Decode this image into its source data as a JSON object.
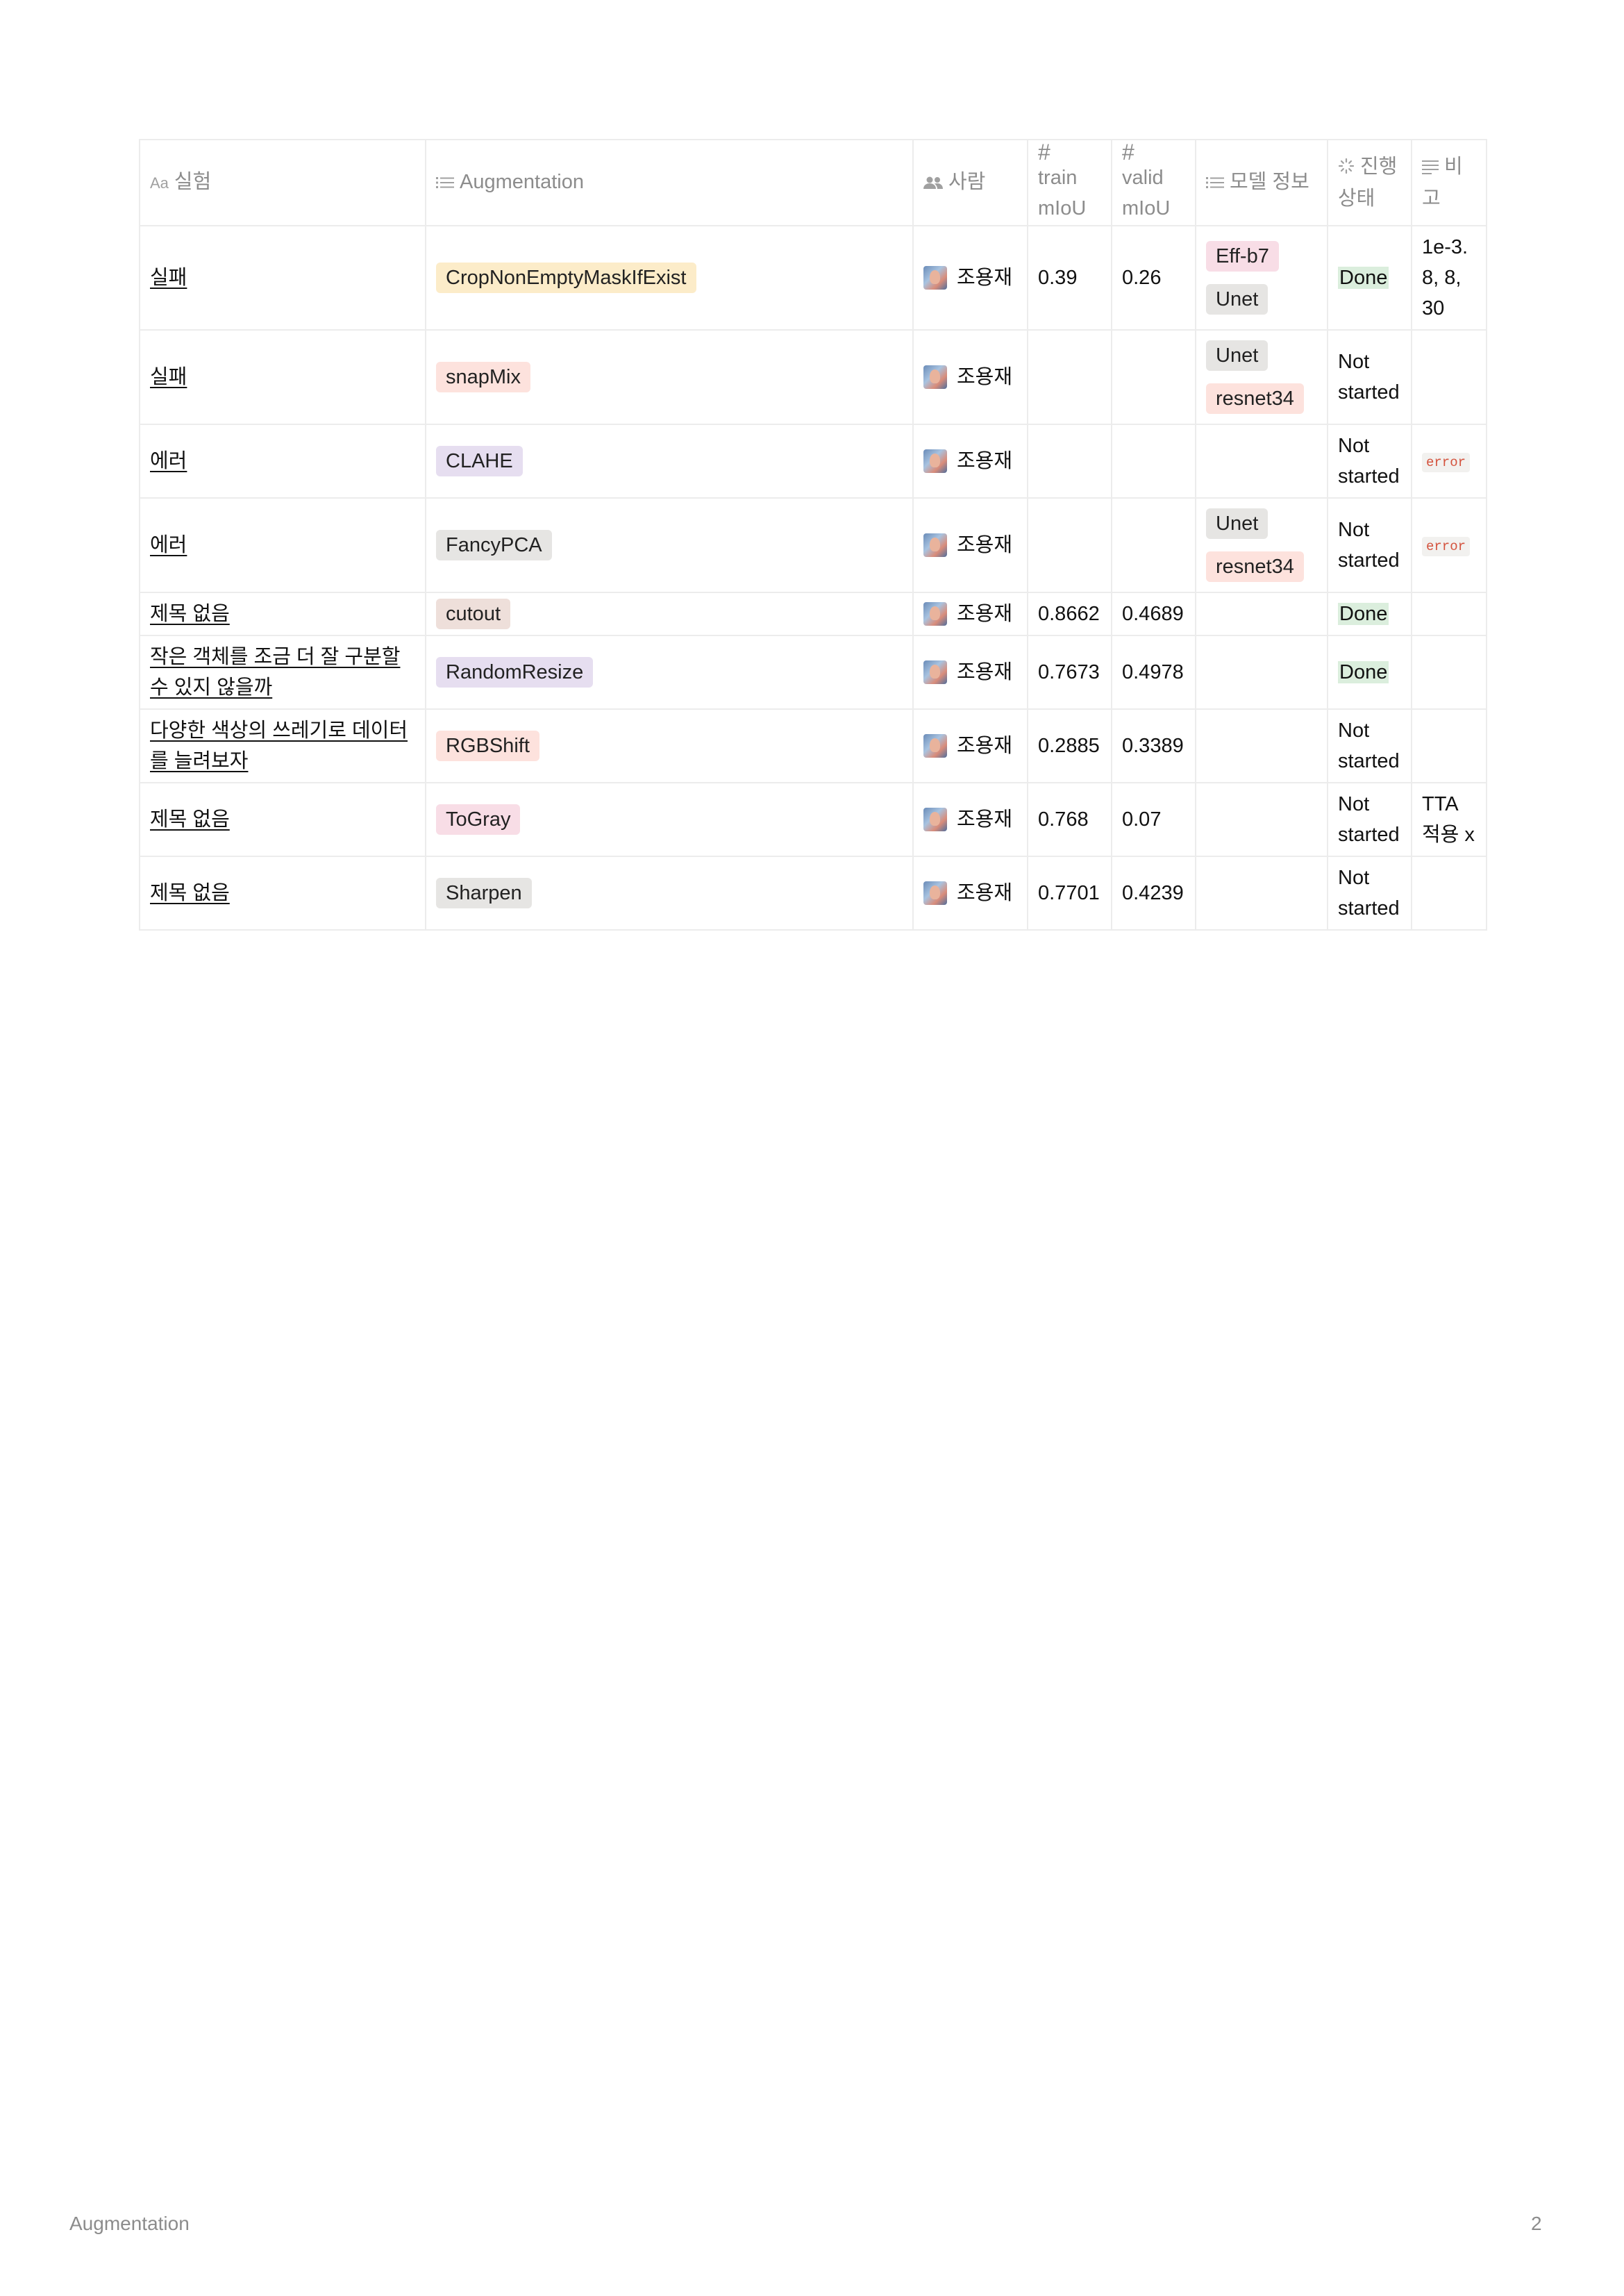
{
  "table": {
    "headers": {
      "experiment": "실험",
      "augmentation": "Augmentation",
      "person": "사람",
      "train_miou": "train mIoU",
      "valid_miou": "valid mIoU",
      "model_info": "모델 정보",
      "status": "진행 상태",
      "note": "비고"
    },
    "header_icons": {
      "experiment": "Aa",
      "number_symbol": "#"
    },
    "rows": [
      {
        "title": "실패",
        "augmentation": {
          "label": "CropNonEmptyMaskIfExist",
          "color": "#fcecc9"
        },
        "person": "조용재",
        "train": "0.39",
        "valid": "0.26",
        "models": [
          {
            "label": "Eff-b7",
            "color": "#f8dde6"
          },
          {
            "label": "Unet",
            "color": "#e6e5e3"
          }
        ],
        "status": "Done",
        "note": "1e-3. 8, 8, 30",
        "note_type": "text"
      },
      {
        "title": "실패",
        "augmentation": {
          "label": "snapMix",
          "color": "#fde2dd"
        },
        "person": "조용재",
        "train": "",
        "valid": "",
        "models": [
          {
            "label": "Unet",
            "color": "#e6e5e3"
          },
          {
            "label": "resnet34",
            "color": "#fde2dd"
          }
        ],
        "status": "Not started",
        "note": "",
        "note_type": "text"
      },
      {
        "title": "에러",
        "augmentation": {
          "label": "CLAHE",
          "color": "#e6def0"
        },
        "person": "조용재",
        "train": "",
        "valid": "",
        "models": [],
        "status": "Not started",
        "note": "error",
        "note_type": "code"
      },
      {
        "title": "에러",
        "augmentation": {
          "label": "FancyPCA",
          "color": "#e6e5e3"
        },
        "person": "조용재",
        "train": "",
        "valid": "",
        "models": [
          {
            "label": "Unet",
            "color": "#e6e5e3"
          },
          {
            "label": "resnet34",
            "color": "#fde2dd"
          }
        ],
        "status": "Not started",
        "note": "error",
        "note_type": "code"
      },
      {
        "title": "제목 없음",
        "augmentation": {
          "label": "cutout",
          "color": "#eedfda"
        },
        "person": "조용재",
        "train": "0.8662",
        "valid": "0.4689",
        "models": [],
        "status": "Done",
        "note": "",
        "note_type": "text"
      },
      {
        "title": "작은 객체를 조금 더 잘 구분할 수 있지 않을까",
        "augmentation": {
          "label": "RandomResize",
          "color": "#e6def0"
        },
        "person": "조용재",
        "train": "0.7673",
        "valid": "0.4978",
        "models": [],
        "status": "Done",
        "note": "",
        "note_type": "text"
      },
      {
        "title": "다양한 색상의 쓰레기로 데이터를 늘려보자",
        "augmentation": {
          "label": "RGBShift",
          "color": "#fde2dd"
        },
        "person": "조용재",
        "train": "0.2885",
        "valid": "0.3389",
        "models": [],
        "status": "Not started",
        "note": "",
        "note_type": "text"
      },
      {
        "title": "제목 없음",
        "augmentation": {
          "label": "ToGray",
          "color": "#f8dde6"
        },
        "person": "조용재",
        "train": "0.768",
        "valid": "0.07",
        "models": [],
        "status": "Not started",
        "note": "TTA 적용 x",
        "note_type": "text"
      },
      {
        "title": "제목 없음",
        "augmentation": {
          "label": "Sharpen",
          "color": "#e6e5e3"
        },
        "person": "조용재",
        "train": "0.7701",
        "valid": "0.4239",
        "models": [],
        "status": "Not started",
        "note": "",
        "note_type": "text"
      }
    ]
  },
  "footer": {
    "title": "Augmentation",
    "page_number": "2"
  }
}
